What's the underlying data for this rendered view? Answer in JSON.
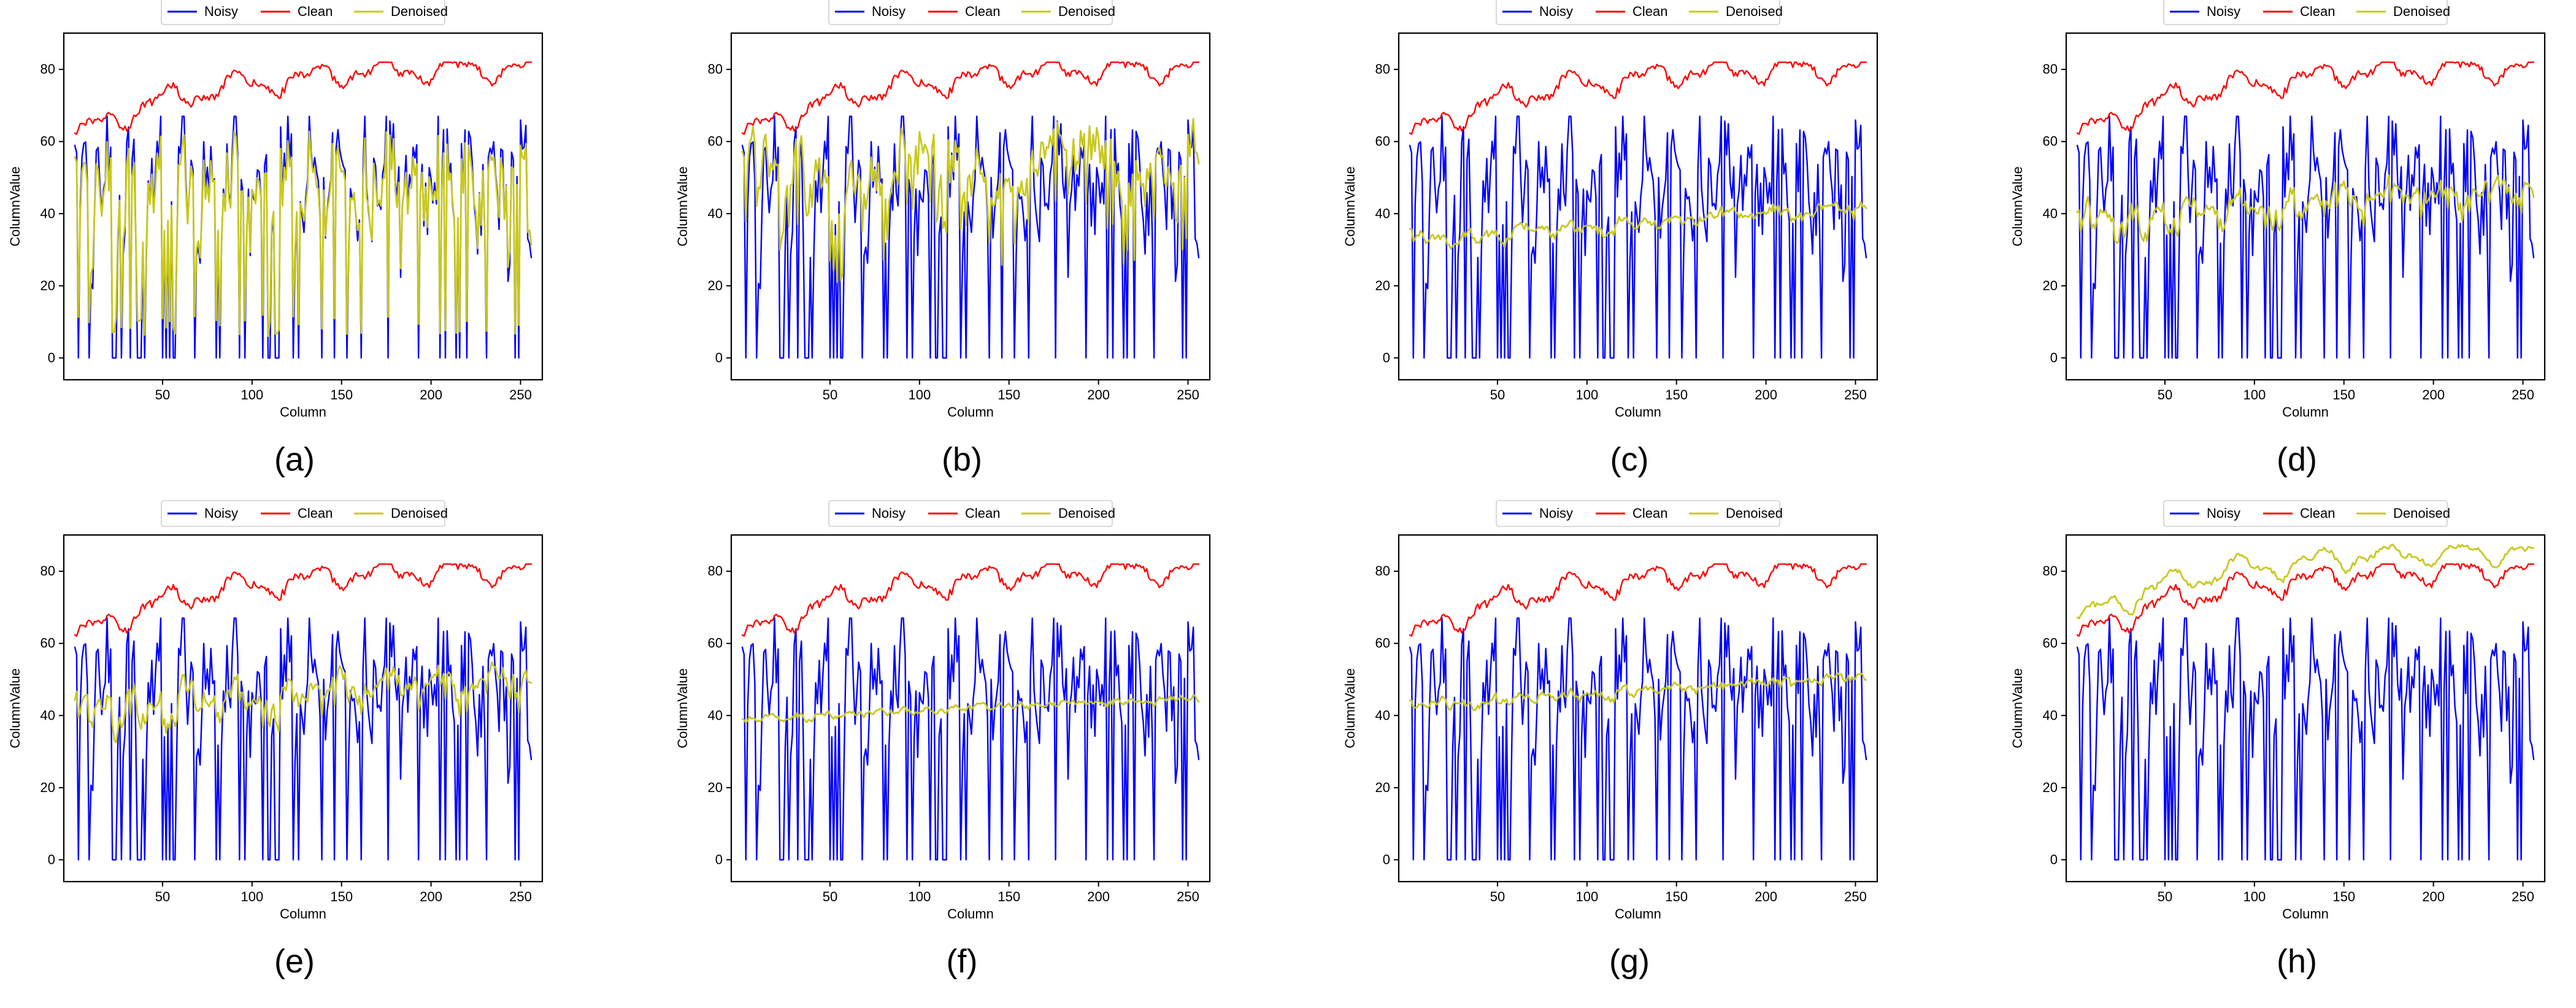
{
  "figure": {
    "colors": {
      "Noisy": "#0000ff",
      "Clean": "#ff0000",
      "Denoised": "#c8c81e",
      "axis": "#000000",
      "background": "#ffffff"
    }
  },
  "chart_data": [
    {
      "panel": "a",
      "caption": "(a)",
      "type": "line",
      "title": "",
      "xlabel": "Column",
      "ylabel": "ColumnValue",
      "xlim": [
        1,
        256
      ],
      "ylim": [
        -3,
        87
      ],
      "xticks": [
        50,
        100,
        150,
        200,
        250
      ],
      "yticks": [
        0,
        20,
        40,
        60,
        80
      ],
      "legend": [
        "Noisy",
        "Clean",
        "Denoised"
      ],
      "legend_position": "top-center-outside",
      "grid": false,
      "denoised_profile": {
        "mode": "follow",
        "weight": 0.78,
        "offset": 1.5,
        "trend": [
          39,
          43
        ],
        "noise": 2.0
      }
    },
    {
      "panel": "b",
      "caption": "(b)",
      "type": "line",
      "title": "",
      "xlabel": "Column",
      "ylabel": "ColumnValue",
      "xlim": [
        1,
        256
      ],
      "ylim": [
        -3,
        87
      ],
      "xticks": [
        50,
        100,
        150,
        200,
        250
      ],
      "yticks": [
        0,
        20,
        40,
        60,
        80
      ],
      "legend": [
        "Noisy",
        "Clean",
        "Denoised"
      ],
      "legend_position": "top-center-outside",
      "grid": false,
      "denoised_profile": {
        "mode": "bumpy",
        "weight": 0.35,
        "offset": 2.5,
        "trend": [
          50,
          58
        ],
        "noise": 3.0
      }
    },
    {
      "panel": "c",
      "caption": "(c)",
      "type": "line",
      "title": "",
      "xlabel": "Column",
      "ylabel": "ColumnValue",
      "xlim": [
        1,
        256
      ],
      "ylim": [
        -3,
        87
      ],
      "xticks": [
        50,
        100,
        150,
        200,
        250
      ],
      "yticks": [
        0,
        20,
        40,
        60,
        80
      ],
      "legend": [
        "Noisy",
        "Clean",
        "Denoised"
      ],
      "legend_position": "top-center-outside",
      "grid": false,
      "denoised_profile": {
        "mode": "smooth",
        "weight": 0.07,
        "offset": 1.0,
        "trend": [
          32,
          42
        ],
        "noise": 1.8
      }
    },
    {
      "panel": "d",
      "caption": "(d)",
      "type": "line",
      "title": "",
      "xlabel": "Column",
      "ylabel": "ColumnValue",
      "xlim": [
        1,
        256
      ],
      "ylim": [
        -3,
        87
      ],
      "xticks": [
        50,
        100,
        150,
        200,
        250
      ],
      "yticks": [
        0,
        20,
        40,
        60,
        80
      ],
      "legend": [
        "Noisy",
        "Clean",
        "Denoised"
      ],
      "legend_position": "top-center-outside",
      "grid": false,
      "denoised_profile": {
        "mode": "moderate",
        "weight": 0.18,
        "offset": 1.5,
        "trend": [
          38,
          48
        ],
        "noise": 3.0
      }
    },
    {
      "panel": "e",
      "caption": "(e)",
      "type": "line",
      "title": "",
      "xlabel": "Column",
      "ylabel": "ColumnValue",
      "xlim": [
        1,
        256
      ],
      "ylim": [
        -3,
        87
      ],
      "xticks": [
        50,
        100,
        150,
        200,
        250
      ],
      "yticks": [
        0,
        20,
        40,
        60,
        80
      ],
      "legend": [
        "Noisy",
        "Clean",
        "Denoised"
      ],
      "legend_position": "top-center-outside",
      "grid": false,
      "denoised_profile": {
        "mode": "moderate",
        "weight": 0.22,
        "offset": 2.0,
        "trend": [
          42,
          52
        ],
        "noise": 3.0
      }
    },
    {
      "panel": "f",
      "caption": "(f)",
      "type": "line",
      "title": "",
      "xlabel": "Column",
      "ylabel": "ColumnValue",
      "xlim": [
        1,
        256
      ],
      "ylim": [
        -3,
        87
      ],
      "xticks": [
        50,
        100,
        150,
        200,
        250
      ],
      "yticks": [
        0,
        20,
        40,
        60,
        80
      ],
      "legend": [
        "Noisy",
        "Clean",
        "Denoised"
      ],
      "legend_position": "top-center-outside",
      "grid": false,
      "denoised_profile": {
        "mode": "smooth",
        "weight": 0.03,
        "offset": 0.0,
        "trend": [
          39,
          45
        ],
        "noise": 1.2
      }
    },
    {
      "panel": "g",
      "caption": "(g)",
      "type": "line",
      "title": "",
      "xlabel": "Column",
      "ylabel": "ColumnValue",
      "xlim": [
        1,
        256
      ],
      "ylim": [
        -3,
        87
      ],
      "xticks": [
        50,
        100,
        150,
        200,
        250
      ],
      "yticks": [
        0,
        20,
        40,
        60,
        80
      ],
      "legend": [
        "Noisy",
        "Clean",
        "Denoised"
      ],
      "legend_position": "top-center-outside",
      "grid": false,
      "denoised_profile": {
        "mode": "smooth",
        "weight": 0.05,
        "offset": 0.0,
        "trend": [
          43,
          51
        ],
        "noise": 1.5
      }
    },
    {
      "panel": "h",
      "caption": "(h)",
      "type": "line",
      "title": "",
      "xlabel": "Column",
      "ylabel": "ColumnValue",
      "xlim": [
        1,
        256
      ],
      "ylim": [
        -3,
        87
      ],
      "xticks": [
        50,
        100,
        150,
        200,
        250
      ],
      "yticks": [
        0,
        20,
        40,
        60,
        80
      ],
      "legend": [
        "Noisy",
        "Clean",
        "Denoised"
      ],
      "legend_position": "top-center-outside",
      "grid": false,
      "denoised_profile": {
        "mode": "shifted",
        "weight": 0.0,
        "offset": 0.0,
        "trend": [
          66,
          84
        ],
        "noise": 1.0
      }
    }
  ]
}
